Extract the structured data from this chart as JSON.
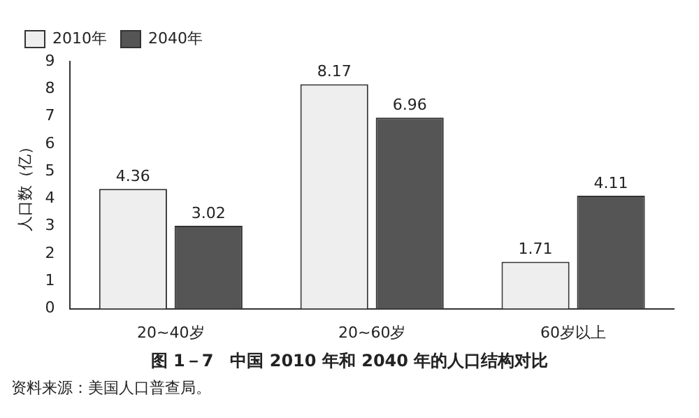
{
  "chart_data": {
    "type": "bar",
    "title": "图 1－7　中国 2010 年和 2040 年的人口结构对比",
    "ylabel": "人口数（亿）",
    "annotations": [
      "资料来源：美国人口普查局。"
    ],
    "categories": [
      "20~40岁",
      "20~60岁",
      "60岁以上"
    ],
    "series": [
      {
        "name": "2010年",
        "color": "#eeeeee",
        "values": [
          4.36,
          8.17,
          1.71
        ]
      },
      {
        "name": "2040年",
        "color": "#555555",
        "values": [
          3.02,
          6.96,
          4.11
        ]
      }
    ],
    "ylim": [
      0,
      9
    ],
    "yticks": [
      0,
      1,
      2,
      3,
      4,
      5,
      6,
      7,
      8,
      9
    ],
    "grid": false,
    "legend": "top left",
    "data_labels": true
  }
}
